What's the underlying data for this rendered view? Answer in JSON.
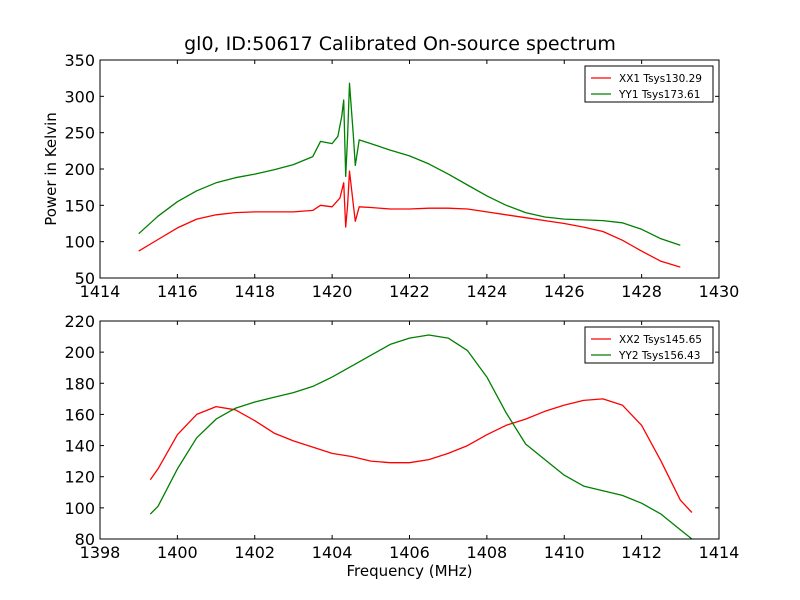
{
  "figure": {
    "title": "gl0, ID:50617 Calibrated On-source spectrum",
    "background": "#ffffff"
  },
  "chart_data": [
    {
      "type": "line",
      "title": "gl0, ID:50617 Calibrated On-source spectrum",
      "xlabel": "",
      "ylabel": "Power in Kelvin",
      "xlim": [
        1414,
        1430
      ],
      "ylim": [
        50,
        350
      ],
      "xticks": [
        1414,
        1416,
        1418,
        1420,
        1422,
        1424,
        1426,
        1428,
        1430
      ],
      "yticks": [
        50,
        100,
        150,
        200,
        250,
        300,
        350
      ],
      "grid": false,
      "legend_position": "top-right",
      "series": [
        {
          "name": "XX1 Tsys130.29",
          "color": "#ff0000",
          "points": [
            [
              1415.0,
              87
            ],
            [
              1415.5,
              103
            ],
            [
              1416.0,
              119
            ],
            [
              1416.5,
              131
            ],
            [
              1417.0,
              137
            ],
            [
              1417.5,
              140
            ],
            [
              1418.0,
              141
            ],
            [
              1418.5,
              141
            ],
            [
              1419.0,
              141
            ],
            [
              1419.5,
              143
            ],
            [
              1419.7,
              150
            ],
            [
              1420.0,
              148
            ],
            [
              1420.2,
              160
            ],
            [
              1420.3,
              181
            ],
            [
              1420.35,
              120
            ],
            [
              1420.4,
              150
            ],
            [
              1420.45,
              197
            ],
            [
              1420.55,
              150
            ],
            [
              1420.6,
              128
            ],
            [
              1420.7,
              148
            ],
            [
              1421.0,
              147
            ],
            [
              1421.5,
              145
            ],
            [
              1422.0,
              145
            ],
            [
              1422.5,
              146
            ],
            [
              1423.0,
              146
            ],
            [
              1423.5,
              145
            ],
            [
              1424.0,
              141
            ],
            [
              1424.5,
              137
            ],
            [
              1425.0,
              133
            ],
            [
              1425.5,
              129
            ],
            [
              1426.0,
              125
            ],
            [
              1426.5,
              120
            ],
            [
              1427.0,
              114
            ],
            [
              1427.5,
              102
            ],
            [
              1428.0,
              87
            ],
            [
              1428.5,
              73
            ],
            [
              1429.0,
              65
            ]
          ]
        },
        {
          "name": "YY1 Tsys173.61",
          "color": "#008000",
          "points": [
            [
              1415.0,
              111
            ],
            [
              1415.5,
              135
            ],
            [
              1416.0,
              155
            ],
            [
              1416.5,
              170
            ],
            [
              1417.0,
              181
            ],
            [
              1417.5,
              188
            ],
            [
              1418.0,
              193
            ],
            [
              1418.5,
              199
            ],
            [
              1419.0,
              206
            ],
            [
              1419.5,
              217
            ],
            [
              1419.7,
              238
            ],
            [
              1420.0,
              235
            ],
            [
              1420.15,
              245
            ],
            [
              1420.25,
              273
            ],
            [
              1420.3,
              295
            ],
            [
              1420.35,
              190
            ],
            [
              1420.4,
              245
            ],
            [
              1420.45,
              318
            ],
            [
              1420.55,
              245
            ],
            [
              1420.6,
              205
            ],
            [
              1420.7,
              240
            ],
            [
              1421.0,
              235
            ],
            [
              1421.5,
              226
            ],
            [
              1422.0,
              218
            ],
            [
              1422.5,
              207
            ],
            [
              1423.0,
              193
            ],
            [
              1423.5,
              178
            ],
            [
              1424.0,
              163
            ],
            [
              1424.5,
              150
            ],
            [
              1425.0,
              140
            ],
            [
              1425.5,
              134
            ],
            [
              1426.0,
              131
            ],
            [
              1426.5,
              130
            ],
            [
              1427.0,
              129
            ],
            [
              1427.5,
              126
            ],
            [
              1428.0,
              117
            ],
            [
              1428.5,
              104
            ],
            [
              1429.0,
              95
            ]
          ]
        }
      ]
    },
    {
      "type": "line",
      "title": "",
      "xlabel": "Frequency (MHz)",
      "ylabel": "",
      "xlim": [
        1398,
        1414
      ],
      "ylim": [
        80,
        220
      ],
      "xticks": [
        1398,
        1400,
        1402,
        1404,
        1406,
        1408,
        1410,
        1412,
        1414
      ],
      "yticks": [
        80,
        100,
        120,
        140,
        160,
        180,
        200,
        220
      ],
      "grid": false,
      "legend_position": "top-right",
      "series": [
        {
          "name": "XX2 Tsys145.65",
          "color": "#ff0000",
          "points": [
            [
              1399.3,
              118
            ],
            [
              1399.5,
              125
            ],
            [
              1400.0,
              147
            ],
            [
              1400.5,
              160
            ],
            [
              1401.0,
              165
            ],
            [
              1401.5,
              163
            ],
            [
              1402.0,
              156
            ],
            [
              1402.5,
              148
            ],
            [
              1403.0,
              143
            ],
            [
              1403.5,
              139
            ],
            [
              1404.0,
              135
            ],
            [
              1404.5,
              133
            ],
            [
              1405.0,
              130
            ],
            [
              1405.5,
              129
            ],
            [
              1406.0,
              129
            ],
            [
              1406.5,
              131
            ],
            [
              1407.0,
              135
            ],
            [
              1407.5,
              140
            ],
            [
              1408.0,
              147
            ],
            [
              1408.5,
              153
            ],
            [
              1409.0,
              157
            ],
            [
              1409.5,
              162
            ],
            [
              1410.0,
              166
            ],
            [
              1410.5,
              169
            ],
            [
              1411.0,
              170
            ],
            [
              1411.5,
              166
            ],
            [
              1412.0,
              153
            ],
            [
              1412.5,
              130
            ],
            [
              1413.0,
              105
            ],
            [
              1413.3,
              97
            ]
          ]
        },
        {
          "name": "YY2 Tsys156.43",
          "color": "#008000",
          "points": [
            [
              1399.3,
              96
            ],
            [
              1399.5,
              101
            ],
            [
              1400.0,
              125
            ],
            [
              1400.5,
              145
            ],
            [
              1401.0,
              157
            ],
            [
              1401.5,
              164
            ],
            [
              1402.0,
              168
            ],
            [
              1402.5,
              171
            ],
            [
              1403.0,
              174
            ],
            [
              1403.5,
              178
            ],
            [
              1404.0,
              184
            ],
            [
              1404.5,
              191
            ],
            [
              1405.0,
              198
            ],
            [
              1405.5,
              205
            ],
            [
              1406.0,
              209
            ],
            [
              1406.5,
              211
            ],
            [
              1407.0,
              209
            ],
            [
              1407.5,
              201
            ],
            [
              1408.0,
              184
            ],
            [
              1408.5,
              161
            ],
            [
              1409.0,
              141
            ],
            [
              1409.5,
              131
            ],
            [
              1410.0,
              121
            ],
            [
              1410.5,
              114
            ],
            [
              1411.0,
              111
            ],
            [
              1411.5,
              108
            ],
            [
              1412.0,
              103
            ],
            [
              1412.5,
              96
            ],
            [
              1413.0,
              86
            ],
            [
              1413.3,
              80
            ]
          ]
        }
      ]
    }
  ]
}
